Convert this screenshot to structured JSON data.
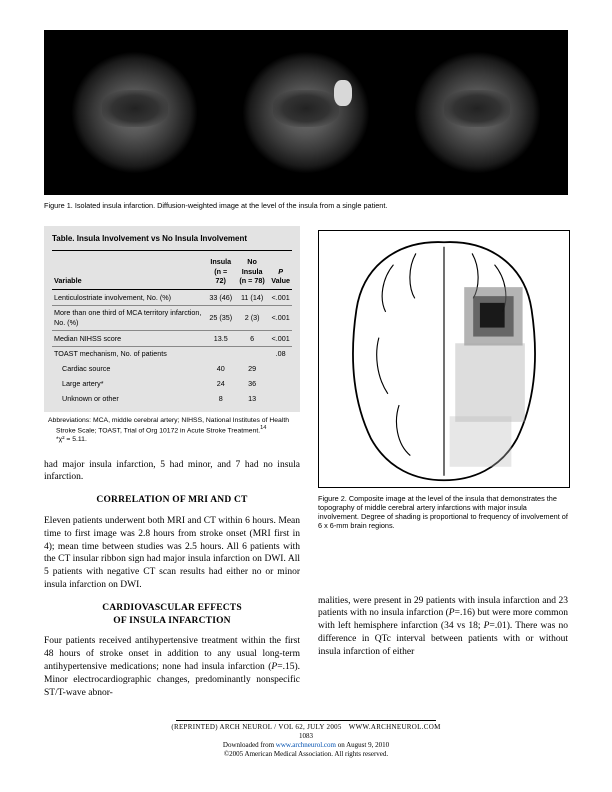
{
  "figure1": {
    "caption": "Figure 1. Isolated insula infarction. Diffusion-weighted image at the level of the insula from a single patient."
  },
  "table": {
    "title": "Table. Insula Involvement vs No Insula Involvement",
    "headers": {
      "variable": "Variable",
      "insula": "Insula\n(n = 72)",
      "noinsula": "No Insula\n(n = 78)",
      "pvalue": "P\nValue"
    },
    "rows": [
      {
        "label": "Lenticulostriate involvement, No. (%)",
        "c1": "33 (46)",
        "c2": "11 (14)",
        "c3": "<.001",
        "bordered": false
      },
      {
        "label": "More than one third of MCA territory infarction, No. (%)",
        "c1": "25 (35)",
        "c2": "2 (3)",
        "c3": "<.001",
        "bordered": true
      },
      {
        "label": "Median NIHSS score",
        "c1": "13.5",
        "c2": "6",
        "c3": "<.001",
        "bordered": true
      },
      {
        "label": "TOAST mechanism, No. of patients",
        "c1": "",
        "c2": "",
        "c3": ".08",
        "bordered": true
      },
      {
        "label": "Cardiac source",
        "c1": "40",
        "c2": "29",
        "c3": "",
        "bordered": false,
        "indent": true
      },
      {
        "label": "Large artery*",
        "c1": "24",
        "c2": "36",
        "c3": "",
        "bordered": false,
        "indent": true
      },
      {
        "label": "Unknown or other",
        "c1": "8",
        "c2": "13",
        "c3": "",
        "bordered": false,
        "indent": true
      }
    ],
    "abbrev": "Abbreviations: MCA, middle cerebral artery; NIHSS, National Institutes of Health Stroke Scale; TOAST, Trial of Org 10172 in Acute Stroke Treatment.",
    "footnote": "*χ² = 5.11."
  },
  "body": {
    "p1": "had major insula infarction, 5 had minor, and 7 had no insula infarction.",
    "h1": "CORRELATION OF MRI AND CT",
    "p2": "Eleven patients underwent both MRI and CT within 6 hours. Mean time to first image was 2.8 hours from stroke onset (MRI first in 4); mean time between studies was 2.5 hours. All 6 patients with the CT insular ribbon sign had major insula infarction on DWI. All 5 patients with negative CT scan results had either no or minor insula infarction on DWI.",
    "h2": "CARDIOVASCULAR EFFECTS OF INSULA INFARCTION",
    "p3": "Four patients received antihypertensive treatment within the first 48 hours of stroke onset in addition to any usual long-term antihypertensive medications; none had insula infarction (P=.15). Minor electrocardiographic changes, predominantly nonspecific ST/T-wave abnor-"
  },
  "figure2": {
    "caption": "Figure 2. Composite image at the level of the insula that demonstrates the topography of middle cerebral artery infarctions with major insula involvement. Degree of shading is proportional to frequency of involvement of 6 x 6-mm brain regions."
  },
  "right_body": {
    "p1": "malities, were present in 29 patients with insula infarction and 23 patients with no insula infarction (P=.16) but were more common with left hemisphere infarction (34 vs 18; P=.01). There was no difference in QTc interval between patients with or without insula infarction of either"
  },
  "footer": {
    "line1a": "(REPRINTED) ARCH NEUROL / VOL 62, JULY 2005",
    "line1b": "WWW.ARCHNEUROL.COM",
    "page": "1083",
    "line2a": "Downloaded from ",
    "link": "www.archneurol.com",
    "line2b": " on August 9, 2010",
    "line3": "©2005 American Medical Association. All rights reserved."
  }
}
